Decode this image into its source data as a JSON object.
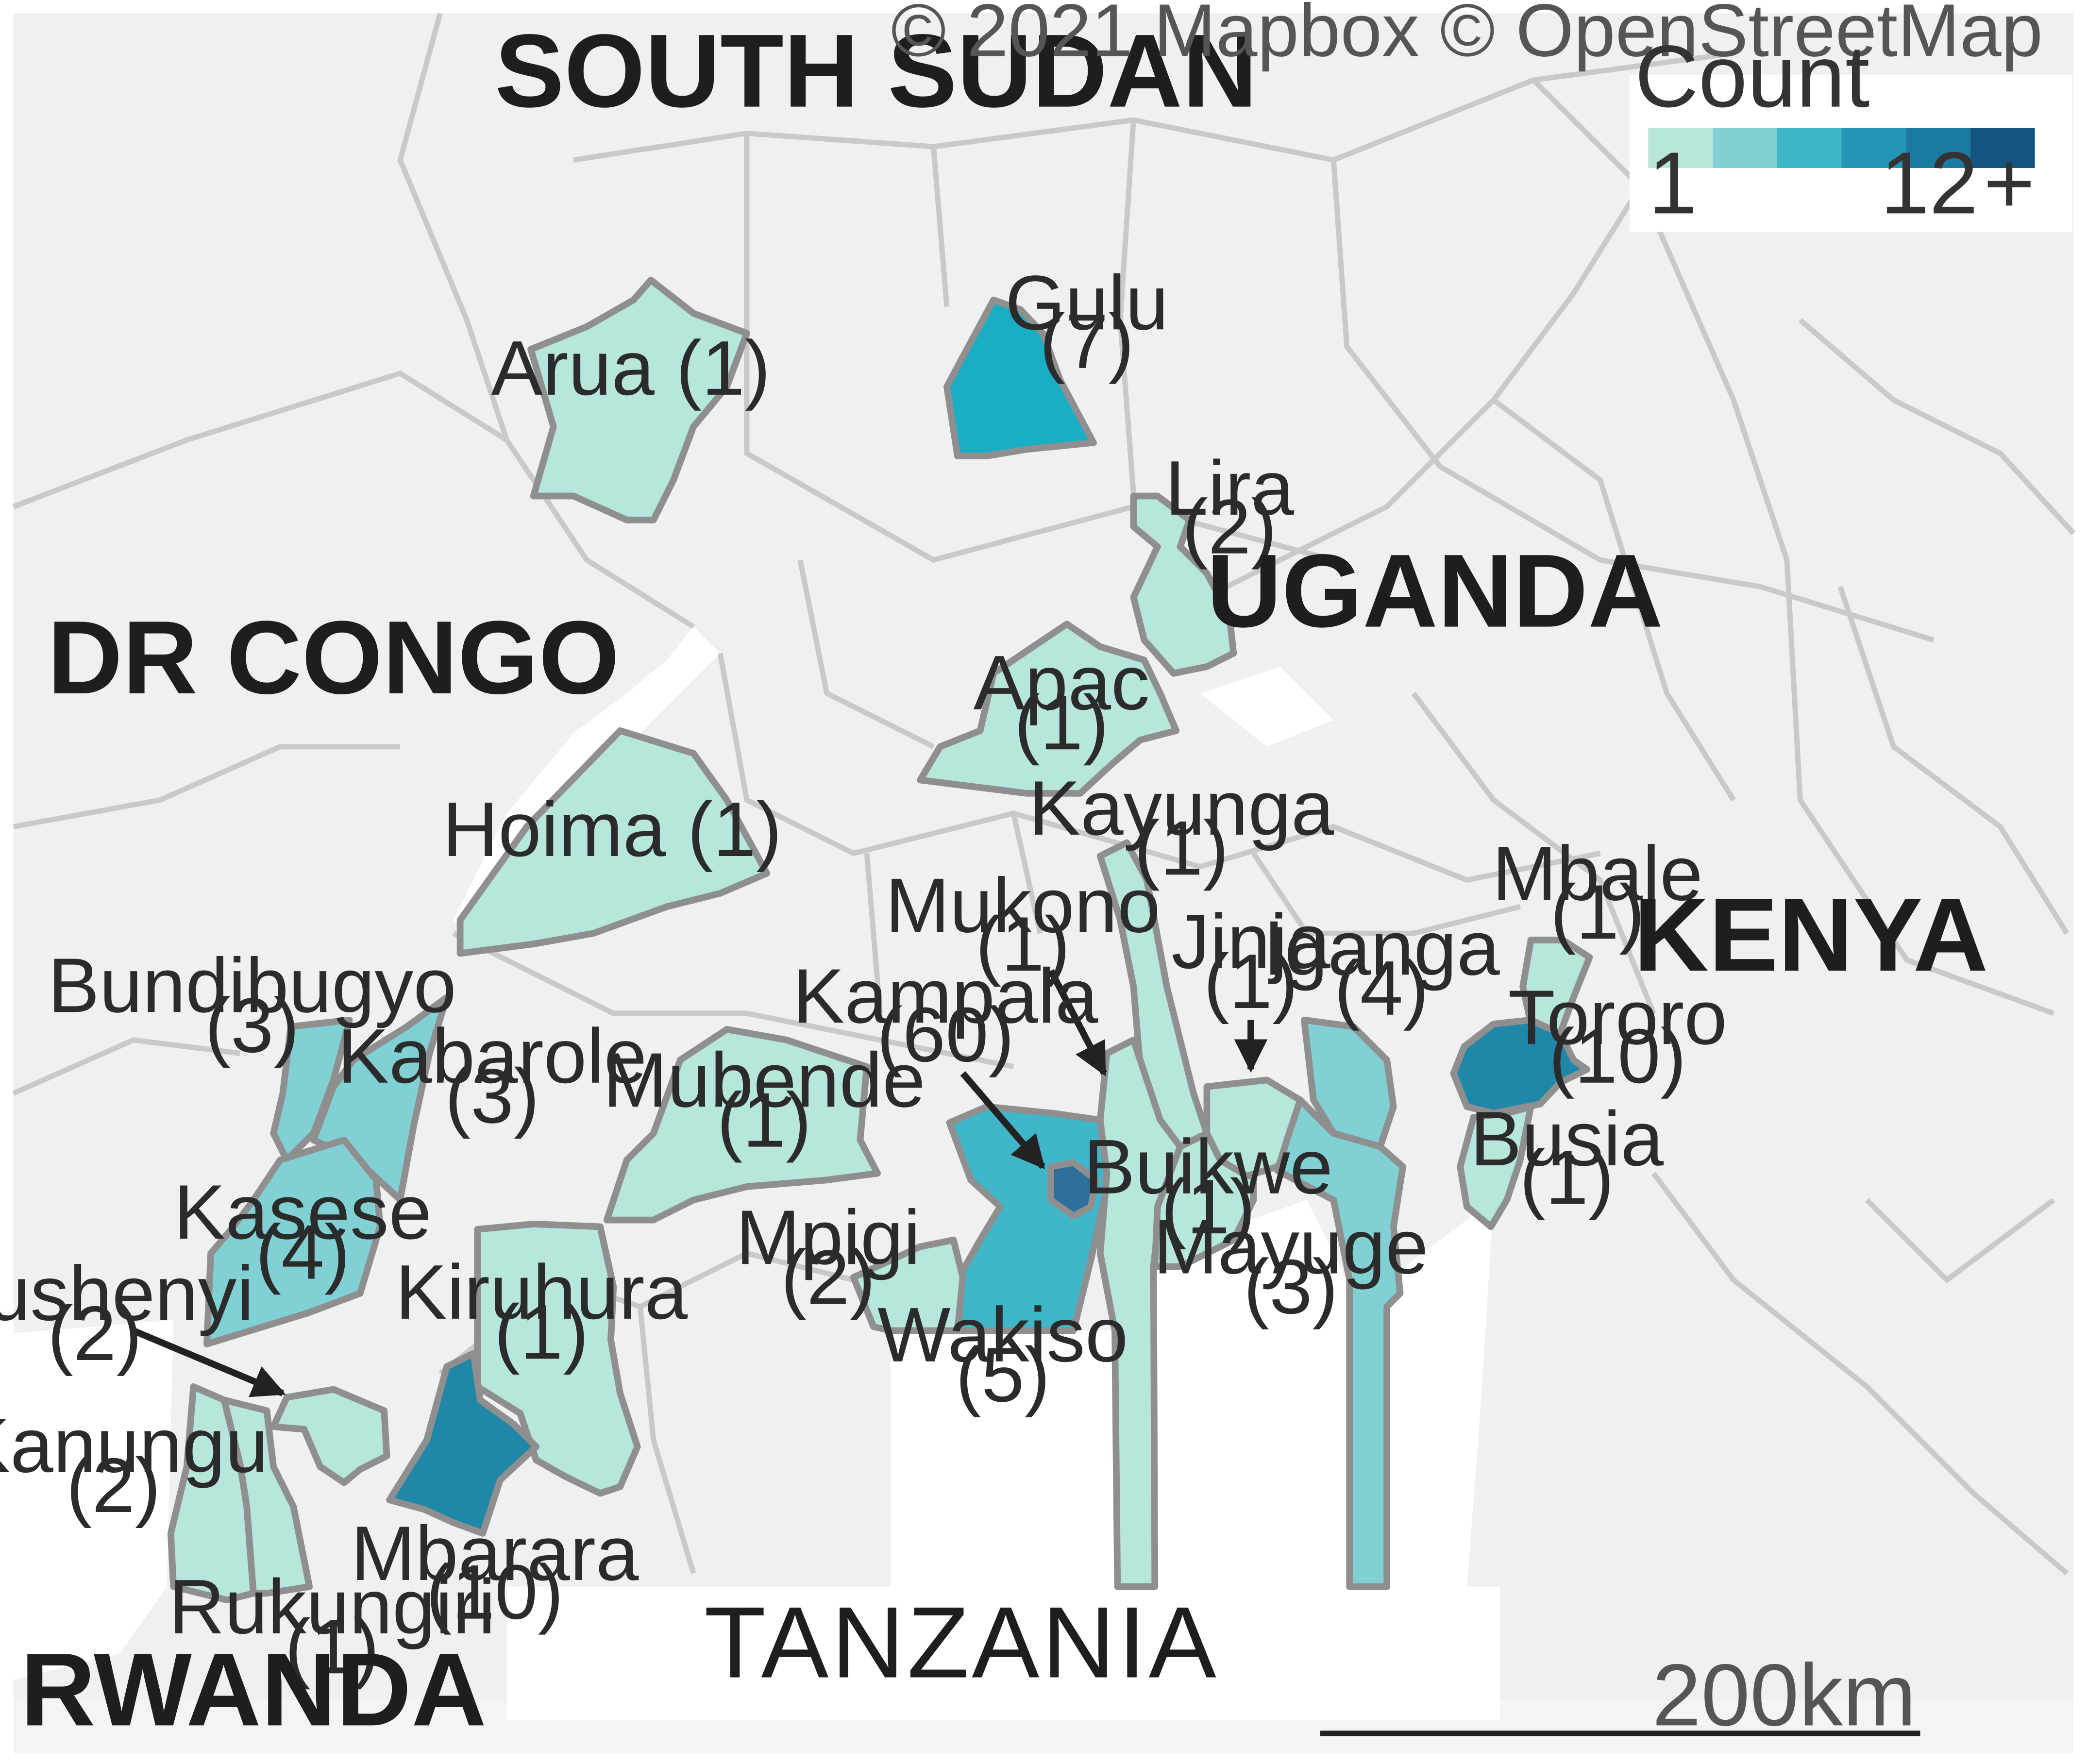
{
  "attribution": "© 2021 Mapbox © OpenStreetMap",
  "legend": {
    "title": "Count",
    "min_label": "1",
    "max_label": "12",
    "max_suffix": "+",
    "colors": [
      "#b6e6dc",
      "#80d0d4",
      "#3fb7c9",
      "#2496b5",
      "#1a7aa0",
      "#14557f"
    ]
  },
  "countries": {
    "south_sudan": "SOUTH SUDAN",
    "dr_congo": "DR CONGO",
    "uganda": "UGANDA",
    "kenya": "KENYA",
    "tanzania": "TANZANIA",
    "rwanda": "RWANDA"
  },
  "scale_bar": "200km",
  "districts": [
    {
      "id": "arua",
      "name": "Arua",
      "count": 1,
      "label": "Arua (1)",
      "color": "#b6e6dc"
    },
    {
      "id": "gulu",
      "name": "Gulu",
      "count": 7,
      "label_name": "Gulu",
      "label_count": "(7)",
      "color": "#1aaec5"
    },
    {
      "id": "lira",
      "name": "Lira",
      "count": 2,
      "label_name": "Lira",
      "label_count": "(2)",
      "color": "#b6e6dc"
    },
    {
      "id": "apac",
      "name": "Apac",
      "count": 1,
      "label_name": "Apac",
      "label_count": "(1)",
      "color": "#b6e6dc"
    },
    {
      "id": "hoima",
      "name": "Hoima",
      "count": 1,
      "label": "Hoima (1)",
      "color": "#b6e6dc"
    },
    {
      "id": "kayunga",
      "name": "Kayunga",
      "count": 1,
      "label_name": "Kayunga",
      "label_count": "(1)",
      "color": "#b6e6dc"
    },
    {
      "id": "mukono",
      "name": "Mukono",
      "count": 1,
      "label_name": "Mukono",
      "label_count": "(1)",
      "color": "#b6e6dc"
    },
    {
      "id": "jinja",
      "name": "Jinja",
      "count": 1,
      "label_name": "Jinja",
      "label_count": "(1)",
      "color": "#b6e6dc"
    },
    {
      "id": "iganga",
      "name": "Iganga",
      "count": 4,
      "label_name": "Iganga",
      "label_count": "(4)",
      "color": "#80d0d4"
    },
    {
      "id": "mbale",
      "name": "Mbale",
      "count": 1,
      "label_name": "Mbale",
      "label_count": "(1)",
      "color": "#b6e6dc"
    },
    {
      "id": "tororo",
      "name": "Tororo",
      "count": 10,
      "label_name": "Tororo",
      "label_count": "(10)",
      "color": "#2187a8"
    },
    {
      "id": "busia",
      "name": "Busia",
      "count": 1,
      "label_name": "Busia",
      "label_count": "(1)",
      "color": "#b6e6dc"
    },
    {
      "id": "bundibugyo",
      "name": "Bundibugyo",
      "count": 3,
      "label_name": "Bundibugyo",
      "label_count": "(3)",
      "color": "#80d0d4"
    },
    {
      "id": "kabarole",
      "name": "Kabarole",
      "count": 3,
      "label_name": "Kabarole",
      "label_count": "(3)",
      "color": "#80d0d4"
    },
    {
      "id": "kampala",
      "name": "Kampala",
      "count": 60,
      "label_name": "Kampala",
      "label_count": "(60)",
      "color": "#2d6f9a"
    },
    {
      "id": "mubende",
      "name": "Mubende",
      "count": 1,
      "label_name": "Mubende",
      "label_count": "(1)",
      "color": "#b6e6dc"
    },
    {
      "id": "kasese",
      "name": "Kasese",
      "count": 4,
      "label_name": "Kasese",
      "label_count": "(4)",
      "color": "#80d0d4"
    },
    {
      "id": "buikwe",
      "name": "Buikwe",
      "count": 1,
      "label_name": "Buikwe",
      "label_count": "(1)",
      "color": "#b6e6dc"
    },
    {
      "id": "mayuge",
      "name": "Mayuge",
      "count": 3,
      "label_name": "Mayuge",
      "label_count": "(3)",
      "color": "#80d0d4"
    },
    {
      "id": "mpigi",
      "name": "Mpigi",
      "count": 2,
      "label_name": "Mpigi",
      "label_count": "(2)",
      "color": "#b6e6dc"
    },
    {
      "id": "wakiso",
      "name": "Wakiso",
      "count": 5,
      "label_name": "Wakiso",
      "label_count": "(5)",
      "color": "#3fb7c9"
    },
    {
      "id": "bushenyi",
      "name": "Bushenyi",
      "count": 2,
      "label_name": "Bushenyi",
      "label_count": "(2)",
      "color": "#b6e6dc"
    },
    {
      "id": "kiruhura",
      "name": "Kiruhura",
      "count": 1,
      "label_name": "Kiruhura",
      "label_count": "(1)",
      "color": "#b6e6dc"
    },
    {
      "id": "kanungu",
      "name": "Kanungu",
      "count": 2,
      "label_name": "Kanungu",
      "label_count": "(2)",
      "color": "#b6e6dc"
    },
    {
      "id": "mbarara",
      "name": "Mbarara",
      "count": 10,
      "label_name": "Mbarara",
      "label_count": "(10)",
      "color": "#2187a8"
    },
    {
      "id": "rukungiri",
      "name": "Rukungiri",
      "count": 1,
      "label_name": "Rukungiri",
      "label_count": "(1)",
      "color": "#b6e6dc"
    }
  ]
}
